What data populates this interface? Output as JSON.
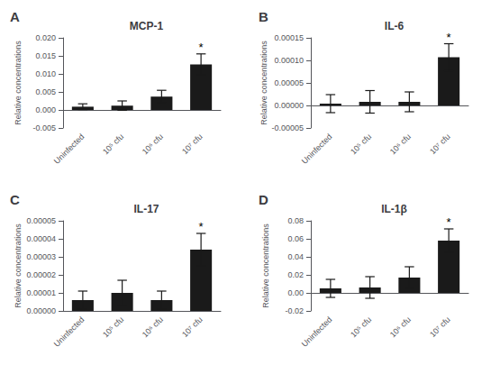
{
  "chart_data": [
    {
      "type": "bar",
      "panel_label": "A",
      "title": "MCP-1",
      "ylabel": "Relative concentrations",
      "categories": [
        "Uninfected",
        "10⁵ cfu",
        "10⁶ cfu",
        "10⁷ cfu"
      ],
      "values": [
        0.0009,
        0.0012,
        0.0037,
        0.01265
      ],
      "errors": [
        0.0008,
        0.0013,
        0.00175,
        0.0029
      ],
      "color": "#1a1a1a",
      "ylim": [
        -0.005,
        0.02
      ],
      "yticks": [
        -0.005,
        {
          "value": 0,
          "label": "0.000"
        },
        0.005,
        {
          "value": 0.01,
          "label": "0.010"
        },
        0.015,
        {
          "value": 0.02,
          "label": "0.020"
        }
      ],
      "annotations": [
        {
          "text": "*",
          "category": "10⁷ cfu"
        }
      ],
      "grid": false
    },
    {
      "type": "bar",
      "panel_label": "B",
      "title": "IL-6",
      "ylabel": "Relative concentrations",
      "categories": [
        "Uninfected",
        "10⁵ cfu",
        "10⁶ cfu",
        "10⁷ cfu"
      ],
      "values": [
        4e-06,
        8e-06,
        8e-06,
        0.000107
      ],
      "errors": [
        2e-05,
        2.5e-05,
        2.2e-05,
        3e-05
      ],
      "color": "#1a1a1a",
      "ylim": [
        -5e-05,
        0.00015
      ],
      "yticks": [
        -5e-05,
        {
          "value": 0,
          "label": "0.00000"
        },
        5e-05,
        {
          "value": 0.0001,
          "label": "0.00010"
        },
        0.00015
      ],
      "annotations": [
        {
          "text": "*",
          "category": "10⁷ cfu"
        }
      ],
      "grid": false
    },
    {
      "type": "bar",
      "panel_label": "C",
      "title": "IL-17",
      "ylabel": "Relative concentrations",
      "categories": [
        "Uninfected",
        "10⁵ cfu",
        "10⁶ cfu",
        "10⁷ cfu"
      ],
      "values": [
        6e-06,
        1e-05,
        6e-06,
        3.4e-05
      ],
      "errors": [
        5e-06,
        7e-06,
        5e-06,
        9e-06
      ],
      "color": "#1a1a1a",
      "ylim": [
        0,
        5e-05
      ],
      "yticks": [
        {
          "value": 0,
          "label": "0.00000"
        },
        1e-05,
        2e-05,
        3e-05,
        4e-05,
        5e-05
      ],
      "annotations": [
        {
          "text": "*",
          "category": "10⁷ cfu"
        }
      ],
      "grid": false
    },
    {
      "type": "bar",
      "panel_label": "D",
      "title": "IL-1β",
      "ylabel": "Relative concentrations",
      "categories": [
        "Uninfected",
        "10⁵ cfu",
        "10⁶ cfu",
        "10⁷ cfu"
      ],
      "values": [
        0.005,
        0.006,
        0.017,
        0.058
      ],
      "errors": [
        0.01,
        0.012,
        0.012,
        0.013
      ],
      "color": "#1a1a1a",
      "ylim": [
        -0.02,
        0.08
      ],
      "yticks": [
        -0.02,
        {
          "value": 0,
          "label": "0.00"
        },
        0.02,
        0.04,
        0.06,
        0.08
      ],
      "annotations": [
        {
          "text": "*",
          "category": "10⁷ cfu"
        }
      ],
      "grid": false
    }
  ]
}
